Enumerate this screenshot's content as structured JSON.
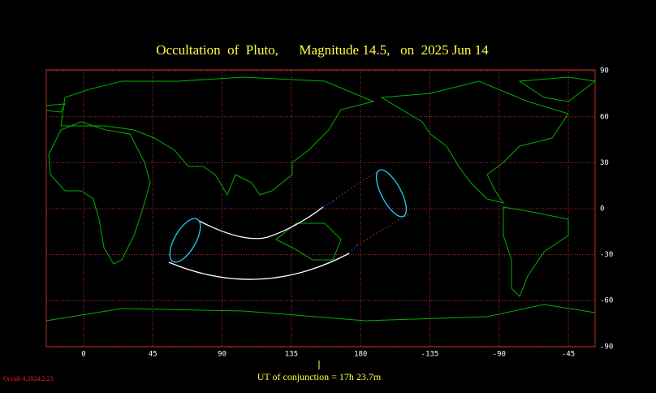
{
  "title": "Occultation  of  Pluto,      Magnitude 14.5,   on  2025 Jun 14",
  "x_ticks": [
    {
      "value": 0,
      "label": "0"
    },
    {
      "value": 45,
      "label": "45"
    },
    {
      "value": 90,
      "label": "90"
    },
    {
      "value": 135,
      "label": "135"
    },
    {
      "value": 180,
      "label": "180"
    },
    {
      "value": -135,
      "label": "-135"
    },
    {
      "value": -90,
      "label": "-90"
    },
    {
      "value": -45,
      "label": "-45"
    }
  ],
  "y_ticks": [
    {
      "value": 90,
      "label": "90"
    },
    {
      "value": 60,
      "label": "60"
    },
    {
      "value": 30,
      "label": "30"
    },
    {
      "value": 0,
      "label": "0"
    },
    {
      "value": -30,
      "label": "-30"
    },
    {
      "value": -60,
      "label": "-60"
    },
    {
      "value": -90,
      "label": "-90"
    }
  ],
  "conjunction": "UT of conjunction = 17h 23.7m",
  "version": "Occult 4.2024.2.23"
}
